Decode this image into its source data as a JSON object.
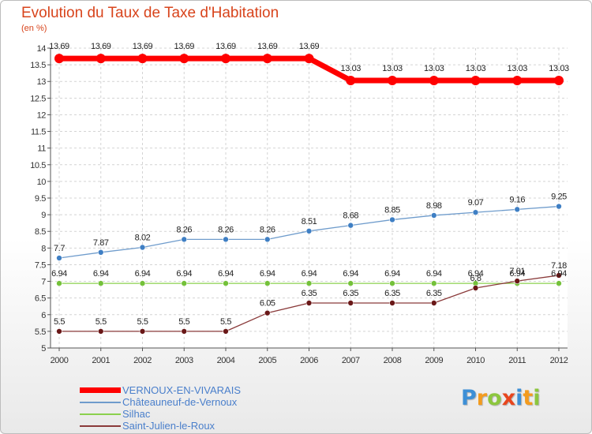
{
  "header": {
    "title": "Evolution du Taux de Taxe d'Habitation",
    "unit": "(en %)"
  },
  "logo": {
    "letters": [
      {
        "ch": "P",
        "color": "#3d8fd6"
      },
      {
        "ch": "r",
        "color": "#f39b1e"
      },
      {
        "ch": "o",
        "color": "#8cc63e"
      },
      {
        "ch": "x",
        "color": "#e8461e"
      },
      {
        "ch": "i",
        "color": "#3d8fd6"
      },
      {
        "ch": "t",
        "color": "#f39b1e"
      },
      {
        "ch": "i",
        "color": "#8cc63e"
      }
    ]
  },
  "chart_data": {
    "type": "line",
    "title": "Evolution du Taux de Taxe d'Habitation",
    "ylabel": "(en %)",
    "xlabel": "",
    "x": [
      "2000",
      "2001",
      "2002",
      "2003",
      "2004",
      "2005",
      "2006",
      "2007",
      "2008",
      "2009",
      "2010",
      "2011",
      "2012"
    ],
    "ylim": [
      5,
      14
    ],
    "yticks": [
      "5",
      "5.5",
      "6",
      "6.5",
      "7",
      "7.5",
      "8",
      "8.5",
      "9",
      "9.5",
      "10",
      "10.5",
      "11",
      "11.5",
      "12",
      "12.5",
      "13",
      "13.5",
      "14"
    ],
    "legend_position": "bottom-left",
    "series": [
      {
        "name": "VERNOUX-EN-VIVARAIS",
        "color": "#ff0000",
        "width": 7,
        "marker": 6,
        "values": [
          13.69,
          13.69,
          13.69,
          13.69,
          13.69,
          13.69,
          13.69,
          13.03,
          13.03,
          13.03,
          13.03,
          13.03,
          13.03
        ],
        "labels": [
          "13.69",
          "13.69",
          "13.69",
          "13.69",
          "13.69",
          "13.69",
          "13.69",
          "13.03",
          "13.03",
          "13.03",
          "13.03",
          "13.03",
          "13.03"
        ]
      },
      {
        "name": "Châteauneuf-de-Vernoux",
        "color": "#6f9ccc",
        "marker_color": "#3f7fc4",
        "width": 1.3,
        "marker": 3.5,
        "values": [
          7.7,
          7.87,
          8.02,
          8.26,
          8.26,
          8.26,
          8.51,
          8.68,
          8.85,
          8.98,
          9.07,
          9.16,
          9.25
        ],
        "labels": [
          "7.7",
          "7.87",
          "8.02",
          "8.26",
          "8.26",
          "8.26",
          "8.51",
          "8.68",
          "8.85",
          "8.98",
          "9.07",
          "9.16",
          "9.25"
        ]
      },
      {
        "name": "Silhac",
        "color": "#8bd04e",
        "marker_color": "#74c13a",
        "width": 1.3,
        "marker": 3.5,
        "values": [
          6.94,
          6.94,
          6.94,
          6.94,
          6.94,
          6.94,
          6.94,
          6.94,
          6.94,
          6.94,
          6.94,
          6.94,
          6.94
        ],
        "labels": [
          "6.94",
          "6.94",
          "6.94",
          "6.94",
          "6.94",
          "6.94",
          "6.94",
          "6.94",
          "6.94",
          "6.94",
          "6.94",
          "6.94",
          "6.94"
        ]
      },
      {
        "name": "Saint-Julien-le-Roux",
        "color": "#8a3a3a",
        "marker_color": "#6a1818",
        "width": 1.3,
        "marker": 3.5,
        "values": [
          5.5,
          5.5,
          5.5,
          5.5,
          5.5,
          6.05,
          6.35,
          6.35,
          6.35,
          6.35,
          6.8,
          7.01,
          7.18
        ],
        "labels": [
          "5.5",
          "5.5",
          "5.5",
          "5.5",
          "5.5",
          "6.05",
          "6.35",
          "6.35",
          "6.35",
          "6.35",
          "6.8",
          "7.01",
          "7.18"
        ]
      }
    ]
  }
}
